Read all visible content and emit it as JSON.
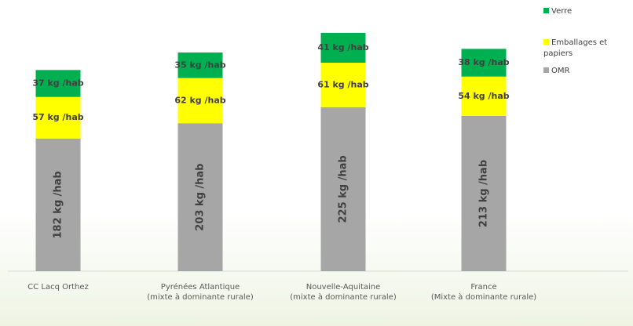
{
  "chart_data": {
    "type": "bar",
    "stacked": true,
    "legend": "top-right",
    "categories": [
      "CC Lacq Orthez",
      "Pyrénées Atlantique\n(mixte à dominante rurale)",
      "Nouvelle-Aquitaine\n(mixte à dominante rurale)",
      "France\n(Mixte à dominante rurale)"
    ],
    "series": [
      {
        "name": "OMR",
        "color": "#a6a6a6",
        "values": [
          182,
          203,
          225,
          213
        ],
        "value_labels": [
          "182 kg /hab",
          "203 kg /hab",
          "225 kg /hab",
          "213 kg /hab"
        ]
      },
      {
        "name": "Emballages et papiers",
        "color": "#ffff00",
        "values": [
          57,
          62,
          61,
          54
        ],
        "value_labels": [
          "57 kg /hab",
          "62 kg /hab",
          "61 kg /hab",
          "54 kg /hab"
        ]
      },
      {
        "name": "Verre",
        "color": "#00b050",
        "values": [
          37,
          35,
          41,
          38
        ],
        "value_labels": [
          "37 kg /hab",
          "35 kg /hab",
          "41 kg /hab",
          "38 kg /hab"
        ]
      }
    ]
  }
}
